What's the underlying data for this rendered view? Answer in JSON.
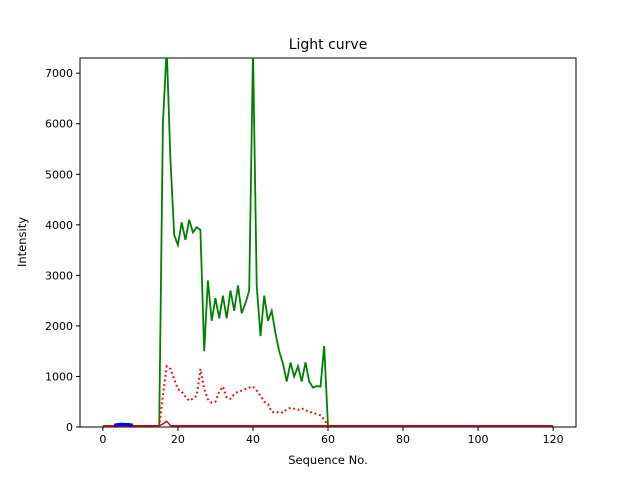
{
  "title": "Light curve",
  "chart_data": {
    "type": "line",
    "title": "Light curve",
    "xlabel": "Sequence No.",
    "ylabel": "Intensity",
    "xlim": [
      -6.1,
      126.1
    ],
    "ylim": [
      0,
      7300
    ],
    "xticks": [
      0,
      20,
      40,
      60,
      80,
      100,
      120
    ],
    "yticks": [
      0,
      1000,
      2000,
      3000,
      4000,
      5000,
      6000,
      7000
    ],
    "grid": false,
    "legend": null,
    "clip_note": "peaks above 7300 are clipped at the top axes edge",
    "series": [
      {
        "name": "main-intensity-curve",
        "color": "#008000",
        "style": "solid",
        "width": 1.8,
        "points": [
          [
            15,
            0
          ],
          [
            16,
            6000
          ],
          [
            17,
            7500
          ],
          [
            18,
            5300
          ],
          [
            19,
            3800
          ],
          [
            20,
            3600
          ],
          [
            21,
            4050
          ],
          [
            22,
            3700
          ],
          [
            23,
            4100
          ],
          [
            24,
            3850
          ],
          [
            25,
            3950
          ],
          [
            26,
            3900
          ],
          [
            27,
            1500
          ],
          [
            28,
            2900
          ],
          [
            29,
            2100
          ],
          [
            30,
            2550
          ],
          [
            31,
            2150
          ],
          [
            32,
            2600
          ],
          [
            33,
            2150
          ],
          [
            34,
            2700
          ],
          [
            35,
            2300
          ],
          [
            36,
            2800
          ],
          [
            37,
            2250
          ],
          [
            38,
            2450
          ],
          [
            39,
            2700
          ],
          [
            40,
            7450
          ],
          [
            41,
            2800
          ],
          [
            42,
            1800
          ],
          [
            43,
            2600
          ],
          [
            44,
            2100
          ],
          [
            45,
            2300
          ],
          [
            46,
            1850
          ],
          [
            47,
            1500
          ],
          [
            48,
            1250
          ],
          [
            49,
            900
          ],
          [
            50,
            1275
          ],
          [
            51,
            1000
          ],
          [
            52,
            1200
          ],
          [
            53,
            900
          ],
          [
            54,
            1280
          ],
          [
            55,
            900
          ],
          [
            56,
            780
          ],
          [
            57,
            810
          ],
          [
            58,
            800
          ],
          [
            59,
            1600
          ],
          [
            60,
            20
          ]
        ]
      },
      {
        "name": "secondary-intensity-curve",
        "color": "#ff0000",
        "style": "dotted",
        "width": 2,
        "points": [
          [
            15,
            0
          ],
          [
            16,
            620
          ],
          [
            17,
            1200
          ],
          [
            18,
            1150
          ],
          [
            19,
            950
          ],
          [
            20,
            750
          ],
          [
            21,
            700
          ],
          [
            22,
            600
          ],
          [
            23,
            520
          ],
          [
            24,
            560
          ],
          [
            25,
            620
          ],
          [
            26,
            1150
          ],
          [
            27,
            750
          ],
          [
            28,
            550
          ],
          [
            29,
            480
          ],
          [
            30,
            500
          ],
          [
            31,
            700
          ],
          [
            32,
            800
          ],
          [
            33,
            580
          ],
          [
            34,
            560
          ],
          [
            35,
            650
          ],
          [
            36,
            700
          ],
          [
            37,
            720
          ],
          [
            38,
            750
          ],
          [
            39,
            780
          ],
          [
            40,
            800
          ],
          [
            41,
            720
          ],
          [
            42,
            620
          ],
          [
            43,
            500
          ],
          [
            44,
            450
          ],
          [
            45,
            300
          ],
          [
            46,
            280
          ],
          [
            47,
            300
          ],
          [
            48,
            280
          ],
          [
            49,
            350
          ],
          [
            50,
            380
          ],
          [
            51,
            360
          ],
          [
            52,
            340
          ],
          [
            53,
            370
          ],
          [
            54,
            330
          ],
          [
            55,
            300
          ],
          [
            56,
            280
          ],
          [
            57,
            260
          ],
          [
            58,
            230
          ],
          [
            59,
            150
          ],
          [
            60,
            20
          ]
        ]
      },
      {
        "name": "baseline-curve",
        "color": "#d40000",
        "style": "solid",
        "width": 1.4,
        "points": [
          [
            0,
            25
          ],
          [
            15,
            25
          ],
          [
            16,
            60
          ],
          [
            17,
            115
          ],
          [
            18,
            28
          ],
          [
            19,
            25
          ],
          [
            120,
            25
          ]
        ]
      },
      {
        "name": "leading-blue-segment",
        "color": "#0000ff",
        "style": "solid",
        "width": 3,
        "points": [
          [
            3,
            35
          ],
          [
            4,
            50
          ],
          [
            5,
            55
          ],
          [
            6,
            52
          ],
          [
            7,
            48
          ],
          [
            8,
            38
          ]
        ]
      }
    ]
  }
}
